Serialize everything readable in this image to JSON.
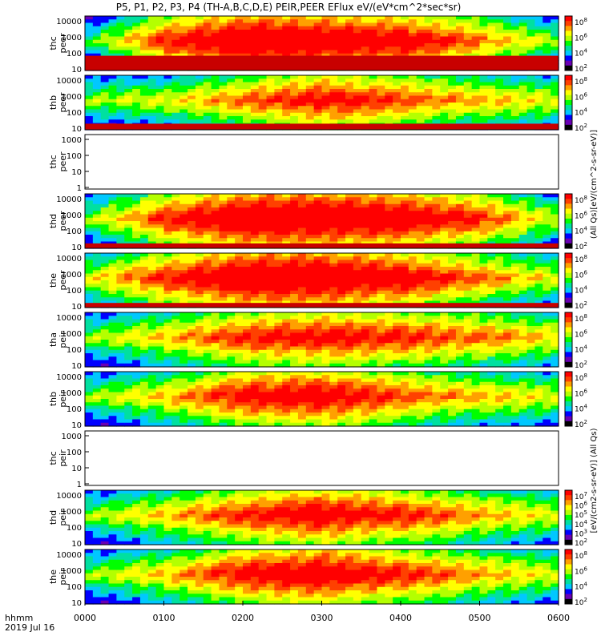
{
  "title": "P5, P1, P2, P3, P4 (TH-A,B,C,D,E) PEIR,PEER EFlux eV/(eV*cm^2*sec*sr)",
  "footer": {
    "time_label": "hhmm",
    "date_label": "2019 Jul 16"
  },
  "colorbar_label_peer": "(All Qs)[eV/(cm^2-s-sr-eV)]",
  "colorbar_label_peir": "[eV/(cm2-s-sr-eV)] (All Qs)",
  "colors": {
    "red": "#ff0000",
    "dark_red": "#c80000",
    "spec_palette": [
      "#000000",
      "#6a00b4",
      "#0000ff",
      "#00c8ff",
      "#00e0a0",
      "#00ff00",
      "#b4ff00",
      "#ffff00",
      "#ffa000",
      "#ff4000",
      "#ff0000"
    ]
  },
  "chart_data": {
    "type": "heatmap",
    "x_ticks": [
      "0000",
      "0100",
      "0200",
      "0300",
      "0400",
      "0500",
      "0600"
    ],
    "x_range": [
      "0000",
      "0600"
    ],
    "panels": [
      {
        "id": "thc_peer",
        "label1": "thc",
        "label2": "peer",
        "yticks": [
          "10000",
          "1000",
          "100",
          "10"
        ],
        "empty": false,
        "cb_ticks": [
          "10^8",
          "10^6",
          "10^4",
          "10^2"
        ],
        "profile": [
          2,
          7,
          9,
          8.5,
          8,
          6,
          3
        ],
        "low_band": 80
      },
      {
        "id": "thb_peer",
        "label1": "thb",
        "label2": "peer",
        "yticks": [
          "10000",
          "1000",
          "100",
          "10"
        ],
        "empty": false,
        "cb_ticks": [
          "10^8",
          "10^6",
          "10^4",
          "10^2"
        ],
        "profile": [
          3,
          4,
          6,
          7.5,
          6.5,
          5,
          4
        ],
        "low_band": 20
      },
      {
        "id": "thc_peer2",
        "label1": "thc",
        "label2": "peer",
        "yticks": [
          "1000",
          "100",
          "10",
          "1"
        ],
        "empty": true,
        "cb_ticks": []
      },
      {
        "id": "thd_peer",
        "label1": "thd",
        "label2": "peer",
        "yticks": [
          "10000",
          "1000",
          "100",
          "10"
        ],
        "empty": false,
        "cb_ticks": [
          "10^8",
          "10^6",
          "10^4",
          "10^2"
        ],
        "profile": [
          3,
          7,
          9,
          9,
          8.5,
          7,
          3.5
        ],
        "low_band": 12
      },
      {
        "id": "the_peer",
        "label1": "the",
        "label2": "peer",
        "yticks": [
          "10000",
          "1000",
          "100",
          "10"
        ],
        "empty": false,
        "cb_ticks": [
          "10^8",
          "10^6",
          "10^4",
          "10^2"
        ],
        "profile": [
          4,
          7,
          9,
          9,
          8,
          6,
          4
        ],
        "low_band": 10
      },
      {
        "id": "tha_peir",
        "label1": "tha",
        "label2": "peir",
        "yticks": [
          "10000",
          "1000",
          "100",
          "10"
        ],
        "empty": false,
        "cb_ticks": [
          "10^8",
          "10^6",
          "10^4",
          "10^2"
        ],
        "profile": [
          3,
          5,
          7,
          7.5,
          7,
          6,
          4.5
        ],
        "low_band": 0
      },
      {
        "id": "thb_peir",
        "label1": "thb",
        "label2": "peir",
        "yticks": [
          "10000",
          "1000",
          "100",
          "10"
        ],
        "empty": false,
        "cb_ticks": [
          "10^8",
          "10^6",
          "10^4",
          "10^2"
        ],
        "profile": [
          3,
          5,
          7.5,
          8,
          6.5,
          5,
          4
        ],
        "low_band": 0
      },
      {
        "id": "thc_peir",
        "label1": "thc",
        "label2": "peir",
        "yticks": [
          "1000",
          "100",
          "10",
          "1"
        ],
        "empty": true,
        "cb_ticks": []
      },
      {
        "id": "thd_peir",
        "label1": "thd",
        "label2": "peir",
        "yticks": [
          "10000",
          "1000",
          "100",
          "10"
        ],
        "empty": false,
        "cb_ticks": [
          "10^7",
          "10^6",
          "10^5",
          "10^4",
          "10^3",
          "10^2"
        ],
        "profile": [
          3,
          5,
          7,
          8,
          7,
          5.5,
          4
        ],
        "low_band": 0
      },
      {
        "id": "the_peir",
        "label1": "the",
        "label2": "peir",
        "yticks": [
          "10000",
          "1000",
          "100",
          "10"
        ],
        "empty": false,
        "cb_ticks": [
          "10^8",
          "10^6",
          "10^4",
          "10^2"
        ],
        "profile": [
          3,
          5,
          7.5,
          8.5,
          7,
          5.5,
          4
        ],
        "low_band": 0
      }
    ]
  }
}
